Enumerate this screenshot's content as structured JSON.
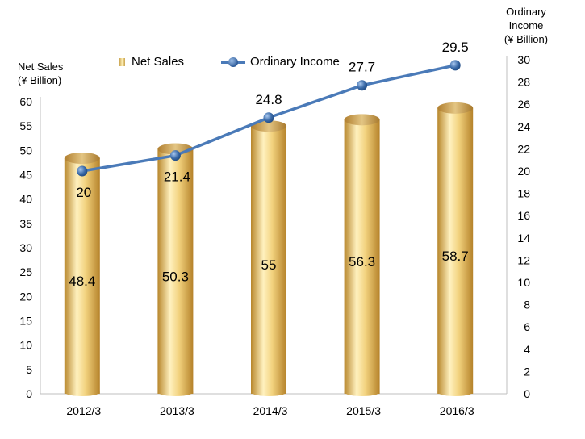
{
  "chart_data": {
    "type": "bar",
    "categories": [
      "2012/3",
      "2013/3",
      "2014/3",
      "2015/3",
      "2016/3"
    ],
    "series": [
      {
        "name": "Net Sales",
        "type": "bar",
        "axis": "left",
        "values": [
          48.4,
          50.3,
          55,
          56.3,
          58.7
        ],
        "labels": [
          "48.4",
          "50.3",
          "55",
          "56.3",
          "58.7"
        ]
      },
      {
        "name": "Ordinary Income",
        "type": "line",
        "axis": "right",
        "values": [
          20,
          21.4,
          24.8,
          27.7,
          29.5
        ],
        "labels": [
          "20",
          "21.4",
          "24.8",
          "27.7",
          "29.5"
        ]
      }
    ],
    "left_axis": {
      "title_line1": "Net Sales",
      "title_line2": "(¥ Billion)",
      "ylim": [
        0,
        60
      ],
      "ticks": [
        "0",
        "5",
        "10",
        "15",
        "20",
        "25",
        "30",
        "35",
        "40",
        "45",
        "50",
        "55",
        "60"
      ]
    },
    "right_axis": {
      "title_line1": "Ordinary",
      "title_line2": "Income",
      "title_line3": "(¥ Billion)",
      "ylim": [
        0,
        30
      ],
      "ticks": [
        "0",
        "2",
        "4",
        "6",
        "8",
        "10",
        "12",
        "14",
        "16",
        "18",
        "20",
        "22",
        "24",
        "26",
        "28",
        "30"
      ]
    },
    "legend_position": "top",
    "colors": {
      "bar_dark": "#c59a3e",
      "bar_light": "#fff0b8",
      "line": "#4a7ab8",
      "marker": "#3a6aa8",
      "frame": "#bfbfbf"
    },
    "grid": false
  }
}
